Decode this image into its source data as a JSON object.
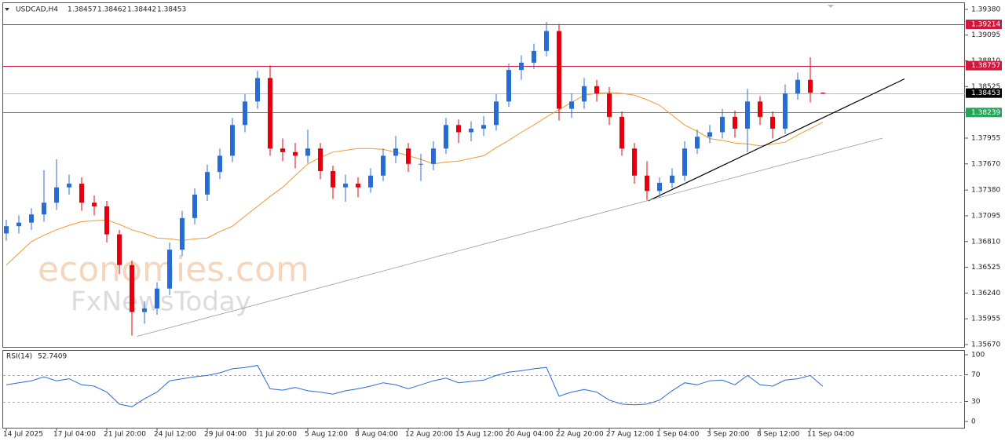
{
  "chart_data": [
    {
      "type": "candlestick",
      "title": "USDCAD,H4",
      "categories": [
        "14 Jul 2025",
        null,
        null,
        null,
        "17 Jul 04:00",
        null,
        null,
        null,
        "21 Jul 20:00",
        null,
        null,
        null,
        "24 Jul 12:00",
        null,
        null,
        null,
        "29 Jul 04:00",
        null,
        null,
        null,
        "31 Jul 20:00",
        null,
        null,
        null,
        "5 Aug 12:00",
        null,
        null,
        null,
        "8 Aug 04:00",
        null,
        null,
        null,
        "12 Aug 20:00",
        null,
        null,
        null,
        "15 Aug 12:00",
        null,
        null,
        null,
        "20 Aug 04:00",
        null,
        null,
        null,
        "22 Aug 20:00",
        null,
        null,
        null,
        "27 Aug 12:00",
        null,
        null,
        null,
        "1 Sep 04:00",
        null,
        null,
        null,
        "3 Sep 20:00",
        null,
        null,
        null,
        "8 Sep 12:00",
        null,
        null,
        null,
        "11 Sep 04:00",
        null
      ],
      "open": [
        1.369,
        1.3698,
        1.3702,
        1.3711,
        1.3724,
        1.3741,
        1.3745,
        1.3724,
        1.372,
        1.3689,
        1.3655,
        1.3603,
        1.3607,
        1.3629,
        1.3672,
        1.3707,
        1.3733,
        1.3758,
        1.3776,
        1.381,
        1.3836,
        1.3862,
        1.3784,
        1.378,
        1.3776,
        1.3784,
        1.3759,
        1.3741,
        1.3745,
        1.3741,
        1.3754,
        1.3776,
        1.3784,
        1.3767,
        1.3767,
        1.3784,
        1.381,
        1.3802,
        1.3806,
        1.381,
        1.3836,
        1.3871,
        1.3879,
        1.3892,
        1.3914,
        1.3828,
        1.3836,
        1.3853,
        1.3845,
        1.3819,
        1.3784,
        1.3754,
        1.3737,
        1.3746,
        1.3754,
        1.3784,
        1.3797,
        1.3802,
        1.3819,
        1.3806,
        1.3836,
        1.3819,
        1.3806,
        1.3845,
        1.386,
        1.38457
      ],
      "high": [
        1.3705,
        1.371,
        1.3718,
        1.376,
        1.3772,
        1.3755,
        1.3752,
        1.3732,
        1.3726,
        1.3694,
        1.366,
        1.3615,
        1.3636,
        1.368,
        1.3715,
        1.374,
        1.3766,
        1.3784,
        1.3818,
        1.3844,
        1.387,
        1.3876,
        1.3795,
        1.379,
        1.3805,
        1.379,
        1.3765,
        1.3755,
        1.3752,
        1.3762,
        1.3784,
        1.3798,
        1.379,
        1.3778,
        1.3792,
        1.3818,
        1.3816,
        1.3814,
        1.382,
        1.3844,
        1.3878,
        1.3887,
        1.39,
        1.3924,
        1.3922,
        1.3845,
        1.3862,
        1.386,
        1.3852,
        1.3825,
        1.379,
        1.377,
        1.3752,
        1.3762,
        1.3792,
        1.3805,
        1.381,
        1.3828,
        1.3826,
        1.385,
        1.3842,
        1.3825,
        1.3855,
        1.3868,
        1.3885,
        1.38462
      ],
      "low": [
        1.3682,
        1.369,
        1.3694,
        1.3703,
        1.3716,
        1.3733,
        1.3715,
        1.371,
        1.368,
        1.3645,
        1.3577,
        1.359,
        1.36,
        1.3622,
        1.3665,
        1.37,
        1.3726,
        1.375,
        1.3769,
        1.3802,
        1.3828,
        1.3776,
        1.377,
        1.3762,
        1.3768,
        1.375,
        1.3728,
        1.3725,
        1.373,
        1.3735,
        1.3748,
        1.3768,
        1.3758,
        1.3748,
        1.376,
        1.3778,
        1.379,
        1.3792,
        1.3798,
        1.3804,
        1.383,
        1.386,
        1.3872,
        1.3886,
        1.3815,
        1.3818,
        1.3828,
        1.3836,
        1.381,
        1.3776,
        1.3745,
        1.3727,
        1.373,
        1.374,
        1.3748,
        1.3778,
        1.379,
        1.3795,
        1.3796,
        1.378,
        1.381,
        1.3795,
        1.38,
        1.3838,
        1.3835,
        1.38442
      ],
      "close": [
        1.3698,
        1.3702,
        1.3711,
        1.3724,
        1.3741,
        1.3745,
        1.3724,
        1.372,
        1.3689,
        1.3655,
        1.3603,
        1.3607,
        1.3629,
        1.3672,
        1.3707,
        1.3733,
        1.3758,
        1.3776,
        1.381,
        1.3836,
        1.3862,
        1.3784,
        1.378,
        1.3776,
        1.3784,
        1.3759,
        1.3741,
        1.3745,
        1.3741,
        1.3754,
        1.3776,
        1.3784,
        1.3767,
        1.3767,
        1.3784,
        1.381,
        1.3802,
        1.3806,
        1.381,
        1.3836,
        1.3871,
        1.3879,
        1.3892,
        1.3914,
        1.3828,
        1.3836,
        1.3853,
        1.3845,
        1.3819,
        1.3784,
        1.3754,
        1.3737,
        1.3746,
        1.3754,
        1.3784,
        1.3797,
        1.3802,
        1.3819,
        1.3806,
        1.3836,
        1.3819,
        1.3806,
        1.3845,
        1.386,
        1.38457,
        1.38453
      ],
      "up_color": "#2a6cd6",
      "down_color": "#e3000f",
      "overlay": {
        "color": "#f29a2e",
        "values": [
          1.3655,
          1.3668,
          1.3681,
          1.3688,
          1.3694,
          1.3699,
          1.3703,
          1.3704,
          1.3705,
          1.37,
          1.3694,
          1.369,
          1.3685,
          1.3684,
          1.3682,
          1.3684,
          1.3685,
          1.3692,
          1.3698,
          1.3709,
          1.372,
          1.3731,
          1.3741,
          1.3754,
          1.3767,
          1.3774,
          1.378,
          1.3782,
          1.3784,
          1.3784,
          1.3783,
          1.378,
          1.3776,
          1.3772,
          1.3767,
          1.3769,
          1.377,
          1.3773,
          1.3776,
          1.3785,
          1.3793,
          1.3802,
          1.381,
          1.3819,
          1.3827,
          1.3835,
          1.3843,
          1.3845,
          1.3846,
          1.3845,
          1.3843,
          1.3838,
          1.3832,
          1.3821,
          1.381,
          1.3803,
          1.3795,
          1.3793,
          1.379,
          1.3789,
          1.3787,
          1.3789,
          1.3791,
          1.3799,
          1.3806,
          1.3813
        ]
      },
      "ylim": [
        1.35644,
        1.39449
      ],
      "yticks": [
        {
          "value": 1.3938,
          "label": "1.39380"
        },
        1.39095,
        {
          "value": 1.3881,
          "label": "1.38810"
        },
        1.38525,
        {
          "value": 1.3824,
          "label": "1.38240"
        },
        1.37955,
        {
          "value": 1.3767,
          "label": "1.37670"
        },
        {
          "value": 1.3738,
          "label": "1.37380"
        },
        1.37095,
        {
          "value": 1.3681,
          "label": "1.36810"
        },
        1.36525,
        {
          "value": 1.3624,
          "label": "1.36240"
        },
        1.35955,
        {
          "value": 1.3567,
          "label": "1.35670"
        }
      ],
      "grid": false,
      "levels": [
        {
          "value": 1.39214,
          "color": "#d0183c"
        },
        {
          "value": 1.38757,
          "color": "#d0183c"
        },
        {
          "value": 1.38453,
          "color": "#000000",
          "line_color": "#b8b8b8"
        },
        {
          "value": 1.38239,
          "color": "#26a65b"
        }
      ],
      "trendlines": [
        {
          "color": "#000000",
          "x": [
            51.1,
            71.5
          ],
          "y": [
            1.3726,
            1.3861
          ]
        },
        {
          "color": "#9a9a9a",
          "x": [
            10.4,
            69.75
          ],
          "y": [
            1.3576,
            1.37955
          ]
        }
      ],
      "watermark": [
        "economies.com",
        "FxNewsToday"
      ]
    },
    {
      "type": "line",
      "series": [
        {
          "name": "RSI(14)",
          "color": "#2a6cd6",
          "values": [
            55,
            58,
            61,
            67,
            61,
            64,
            55,
            53,
            44,
            26,
            22,
            34,
            44,
            61,
            64,
            67,
            69,
            73,
            79,
            81,
            84,
            49,
            47,
            51,
            46,
            44,
            41,
            46,
            49,
            53,
            58,
            55,
            49,
            55,
            61,
            65,
            58,
            60,
            62,
            69,
            74,
            76,
            79,
            81,
            38,
            44,
            48,
            44,
            32,
            26,
            25,
            26,
            32,
            46,
            58,
            55,
            61,
            62,
            55,
            69,
            55,
            53,
            62,
            64,
            69,
            52.7409
          ]
        }
      ],
      "ylim": [
        -9.4,
        105.9
      ],
      "yticks": [
        100,
        70,
        30,
        0
      ],
      "levels": [
        70,
        30
      ]
    }
  ]
}
